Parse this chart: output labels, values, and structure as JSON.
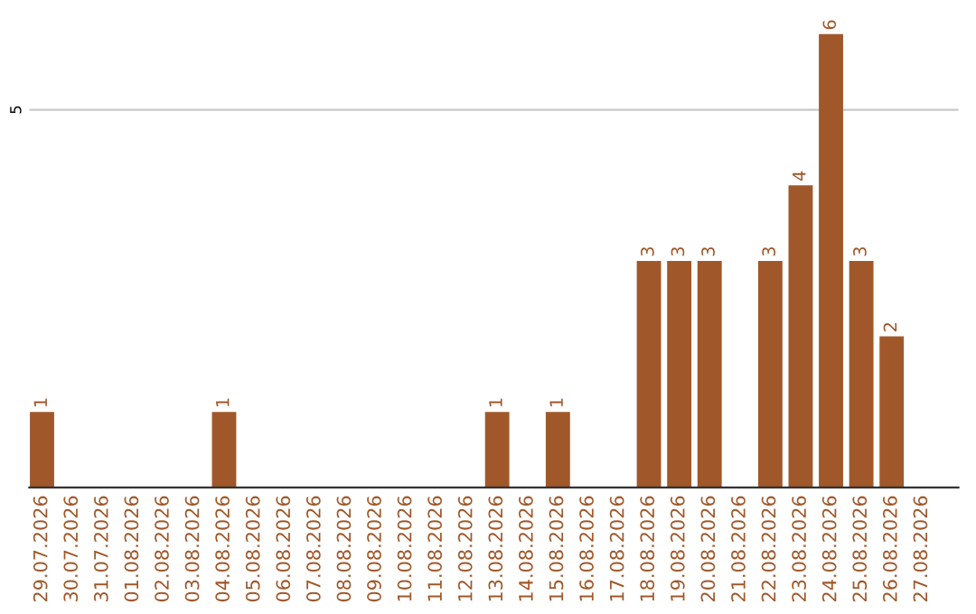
{
  "chart_data": {
    "type": "bar",
    "categories": [
      "29.07.2026",
      "30.07.2026",
      "31.07.2026",
      "01.08.2026",
      "02.08.2026",
      "03.08.2026",
      "04.08.2026",
      "05.08.2026",
      "06.08.2026",
      "07.08.2026",
      "08.08.2026",
      "09.08.2026",
      "10.08.2026",
      "11.08.2026",
      "12.08.2026",
      "13.08.2026",
      "14.08.2026",
      "15.08.2026",
      "16.08.2026",
      "17.08.2026",
      "18.08.2026",
      "19.08.2026",
      "20.08.2026",
      "21.08.2026",
      "22.08.2026",
      "23.08.2026",
      "24.08.2026",
      "25.08.2026",
      "26.08.2026",
      "27.08.2026"
    ],
    "values": [
      1,
      0,
      0,
      0,
      0,
      0,
      1,
      0,
      0,
      0,
      0,
      0,
      0,
      0,
      0,
      1,
      0,
      1,
      0,
      0,
      3,
      3,
      3,
      0,
      3,
      4,
      6,
      3,
      2,
      0
    ],
    "value_labels": [
      "1",
      null,
      null,
      null,
      null,
      null,
      "1",
      null,
      null,
      null,
      null,
      null,
      null,
      null,
      null,
      "1",
      null,
      "1",
      null,
      null,
      "3",
      "3",
      "3",
      null,
      "3",
      "4",
      "6",
      "3",
      "2",
      null
    ],
    "color": "#a0582a",
    "ref_lines": [
      {
        "axis": "y",
        "value": 5,
        "label": "5",
        "color": "#c8c8c8"
      }
    ]
  }
}
